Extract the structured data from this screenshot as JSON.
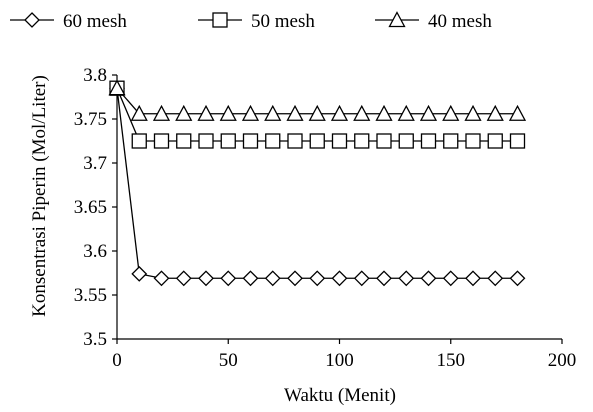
{
  "chart_data": {
    "type": "line",
    "title": "",
    "xlabel": "Waktu (Menit)",
    "ylabel": "Konsentrasi Piperin (Mol/Liter)",
    "xlim": [
      0,
      200
    ],
    "ylim": [
      3.5,
      3.8
    ],
    "x_ticks": [
      0,
      50,
      100,
      150,
      200
    ],
    "x_tick_labels": [
      "0",
      "50",
      "100",
      "150",
      "200"
    ],
    "y_ticks": [
      3.5,
      3.55,
      3.6,
      3.65,
      3.7,
      3.75,
      3.8
    ],
    "y_tick_labels": [
      "3.5",
      "3.55",
      "3.6",
      "3.65",
      "3.7",
      "3.75",
      "3.8"
    ],
    "grid": false,
    "legend_position": "top",
    "x": [
      0,
      10,
      20,
      30,
      40,
      50,
      60,
      70,
      80,
      90,
      100,
      110,
      120,
      130,
      140,
      150,
      160,
      170,
      180
    ],
    "series": [
      {
        "name": "60 mesh",
        "marker": "diamond",
        "color": "#000000",
        "values": [
          3.785,
          3.574,
          3.569,
          3.569,
          3.569,
          3.569,
          3.569,
          3.569,
          3.569,
          3.569,
          3.569,
          3.569,
          3.569,
          3.569,
          3.569,
          3.569,
          3.569,
          3.569,
          3.569
        ]
      },
      {
        "name": "50 mesh",
        "marker": "square",
        "color": "#000000",
        "values": [
          3.785,
          3.725,
          3.725,
          3.725,
          3.725,
          3.725,
          3.725,
          3.725,
          3.725,
          3.725,
          3.725,
          3.725,
          3.725,
          3.725,
          3.725,
          3.725,
          3.725,
          3.725,
          3.725
        ]
      },
      {
        "name": "40 mesh",
        "marker": "triangle",
        "color": "#000000",
        "values": [
          3.785,
          3.756,
          3.756,
          3.756,
          3.756,
          3.756,
          3.756,
          3.756,
          3.756,
          3.756,
          3.756,
          3.756,
          3.756,
          3.756,
          3.756,
          3.756,
          3.756,
          3.756,
          3.756
        ]
      }
    ]
  }
}
